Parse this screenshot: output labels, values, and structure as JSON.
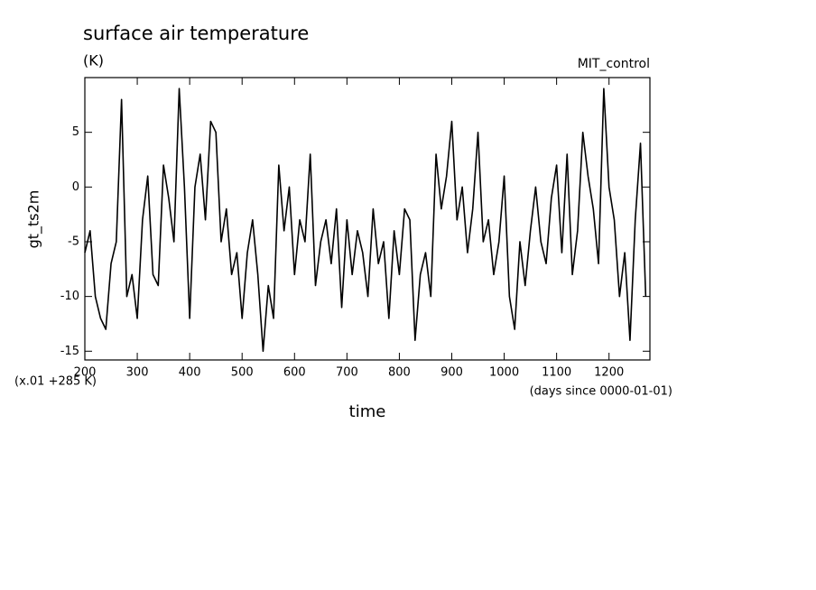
{
  "chart_data": {
    "type": "line",
    "title": "surface air temperature",
    "subtitle": "(K)",
    "annotation_right": "MIT_control",
    "ylabel": "gt_ts2m",
    "xlabel": "time",
    "scale_note": "(x.01 +285 K)",
    "x_units": "(days since 0000-01-01)",
    "xlim": [
      200,
      1278
    ],
    "ylim": [
      -15.8,
      10
    ],
    "xticks": [
      200,
      300,
      400,
      500,
      600,
      700,
      800,
      900,
      1000,
      1100,
      1200
    ],
    "yticks": [
      -15,
      -10,
      -5,
      0,
      5
    ],
    "series": [
      {
        "color": "#000000",
        "x": [
          200,
          210,
          220,
          230,
          240,
          250,
          260,
          270,
          280,
          290,
          300,
          310,
          320,
          330,
          340,
          350,
          360,
          370,
          380,
          390,
          400,
          410,
          420,
          430,
          440,
          450,
          460,
          470,
          480,
          490,
          500,
          510,
          520,
          530,
          540,
          550,
          560,
          570,
          580,
          590,
          600,
          610,
          620,
          630,
          640,
          650,
          660,
          670,
          680,
          690,
          700,
          710,
          720,
          730,
          740,
          750,
          760,
          770,
          780,
          790,
          800,
          810,
          820,
          830,
          840,
          850,
          860,
          870,
          880,
          890,
          900,
          910,
          920,
          930,
          940,
          950,
          960,
          970,
          980,
          990,
          1000,
          1010,
          1020,
          1030,
          1040,
          1050,
          1060,
          1070,
          1080,
          1090,
          1100,
          1110,
          1120,
          1130,
          1140,
          1150,
          1160,
          1170,
          1180,
          1190,
          1200,
          1210,
          1220,
          1230,
          1240,
          1250,
          1260,
          1270
        ],
        "values": [
          -6,
          -4,
          -10,
          -12,
          -13,
          -7,
          -5,
          8,
          -10,
          -8,
          -12,
          -3,
          1,
          -8,
          -9,
          2,
          -1,
          -5,
          9,
          0,
          -12,
          0,
          3,
          -3,
          6,
          5,
          -5,
          -2,
          -8,
          -6,
          -12,
          -6,
          -3,
          -8,
          -15,
          -9,
          -12,
          2,
          -4,
          0,
          -8,
          -3,
          -5,
          3,
          -9,
          -5,
          -3,
          -7,
          -2,
          -11,
          -3,
          -8,
          -4,
          -6,
          -10,
          -2,
          -7,
          -5,
          -12,
          -4,
          -8,
          -2,
          -3,
          -14,
          -8,
          -6,
          -10,
          3,
          -2,
          1,
          6,
          -3,
          0,
          -6,
          -2,
          5,
          -5,
          -3,
          -8,
          -5,
          1,
          -10,
          -13,
          -5,
          -9,
          -4,
          0,
          -5,
          -7,
          -1,
          2,
          -6,
          3,
          -8,
          -4,
          5,
          1,
          -2,
          -7,
          9,
          0,
          -3,
          -10,
          -6,
          -14,
          -3,
          4,
          -10
        ]
      }
    ]
  }
}
